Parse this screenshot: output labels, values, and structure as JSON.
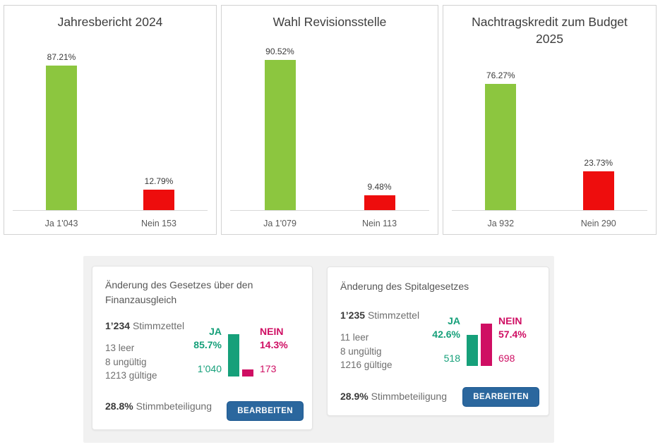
{
  "colors": {
    "bar_green": "#8cc63f",
    "bar_red": "#ee0d0d",
    "yes_teal": "#16a07a",
    "no_magenta": "#cf0e63",
    "button_blue": "#2b679e",
    "panel_gray": "#f1f1f1"
  },
  "chart_data": [
    {
      "type": "bar",
      "title": "Jahresbericht 2024",
      "categories": [
        "Ja 1'043",
        "Nein 153"
      ],
      "values": [
        87.21,
        12.79
      ],
      "value_labels": [
        "87.21%",
        "12.79%"
      ],
      "colors": [
        "#8cc63f",
        "#ee0d0d"
      ],
      "ylim": [
        0,
        100
      ],
      "grid": false,
      "legend": "none"
    },
    {
      "type": "bar",
      "title": "Wahl Revisionsstelle",
      "categories": [
        "Ja 1'079",
        "Nein 113"
      ],
      "values": [
        90.52,
        9.48
      ],
      "value_labels": [
        "90.52%",
        "9.48%"
      ],
      "colors": [
        "#8cc63f",
        "#ee0d0d"
      ],
      "ylim": [
        0,
        100
      ],
      "grid": false,
      "legend": "none"
    },
    {
      "type": "bar",
      "title": "Nachtragskredit zum Budget 2025",
      "categories": [
        "Ja 932",
        "Nein 290"
      ],
      "values": [
        76.27,
        23.73
      ],
      "value_labels": [
        "76.27%",
        "23.73%"
      ],
      "colors": [
        "#8cc63f",
        "#ee0d0d"
      ],
      "ylim": [
        0,
        100
      ],
      "grid": false,
      "legend": "none"
    }
  ],
  "cards": [
    {
      "title": "Änderung des Gesetzes über den Finanzausgleich",
      "ballots_value": "1’234",
      "ballots_label": "Stimmzettel",
      "stats": [
        "13 leer",
        "8 ungültig",
        "1213 gültige"
      ],
      "turnout_value": "28.8%",
      "turnout_label": "Stimmbeteiligung",
      "yes": {
        "label": "JA",
        "pct": "85.7%",
        "pct_num": 85.7,
        "count": "1’040"
      },
      "no": {
        "label": "NEIN",
        "pct": "14.3%",
        "pct_num": 14.3,
        "count": "173"
      },
      "button": "BEARBEITEN"
    },
    {
      "title": "Änderung des Spitalgesetzes",
      "ballots_value": "1’235",
      "ballots_label": "Stimmzettel",
      "stats": [
        "11 leer",
        "8 ungültig",
        "1216 gültige"
      ],
      "turnout_value": "28.9%",
      "turnout_label": "Stimmbeteiligung",
      "yes": {
        "label": "JA",
        "pct": "42.6%",
        "pct_num": 42.6,
        "count": "518"
      },
      "no": {
        "label": "NEIN",
        "pct": "57.4%",
        "pct_num": 57.4,
        "count": "698"
      },
      "button": "BEARBEITEN"
    }
  ]
}
